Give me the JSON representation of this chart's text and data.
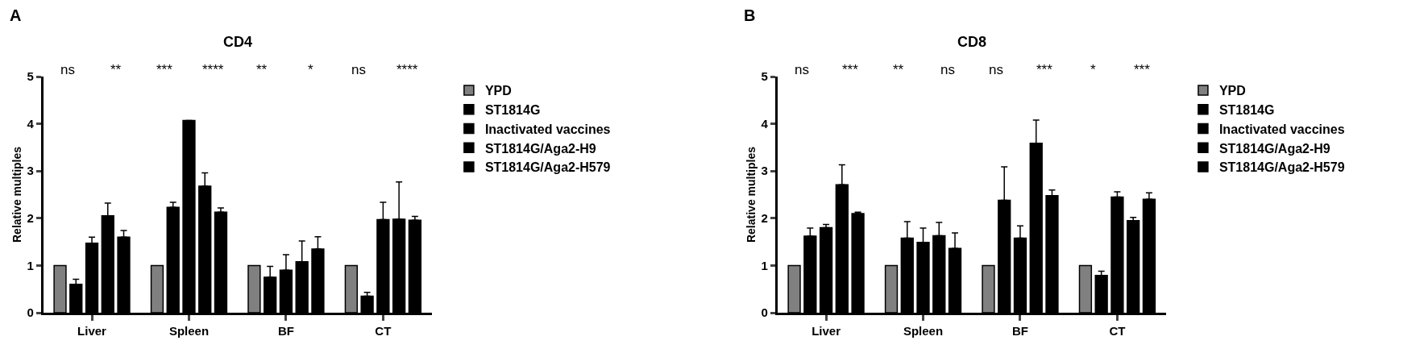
{
  "chart_data": [
    {
      "type": "bar",
      "title": "CD4",
      "ylabel": "Relative multiples",
      "categories": [
        "Liver",
        "Spleen",
        "BF",
        "CT"
      ],
      "ylim": [
        0,
        5
      ],
      "yticks": [
        0,
        1,
        2,
        3,
        4,
        5
      ],
      "grid": false,
      "legend": "right",
      "series": [
        {
          "name": "YPD",
          "color": "#808080",
          "values": [
            1,
            1,
            1,
            1
          ]
        },
        {
          "name": "ST1814G",
          "color": "#000000",
          "values": [
            0.6,
            2.23,
            0.75,
            0.35
          ],
          "errors": [
            [
              0.6,
              0.71
            ],
            [
              2.23,
              2.34
            ],
            [
              0.75,
              0.98
            ],
            [
              0.35,
              0.43
            ]
          ]
        },
        {
          "name": "Inactivated vaccines",
          "color": "#000000",
          "values": [
            1.47,
            4.07,
            0.9,
            1.97
          ],
          "errors": [
            [
              1.47,
              1.6
            ],
            null,
            [
              0.9,
              1.23
            ],
            [
              1.97,
              2.34
            ]
          ]
        },
        {
          "name": "ST1814G/Aga2-H9",
          "color": "#000000",
          "values": [
            2.05,
            2.68,
            1.08,
            1.98
          ],
          "errors": [
            [
              2.05,
              2.32
            ],
            [
              2.68,
              2.96
            ],
            [
              1.08,
              1.52
            ],
            [
              1.98,
              2.77
            ]
          ]
        },
        {
          "name": "ST1814G/Aga2-H579",
          "color": "#000000",
          "values": [
            1.6,
            2.13,
            1.35,
            1.96
          ],
          "errors": [
            [
              1.6,
              1.74
            ],
            [
              2.13,
              2.22
            ],
            [
              1.35,
              1.61
            ],
            [
              1.96,
              2.04
            ]
          ]
        }
      ],
      "annotations": [
        "A",
        "ns",
        "**",
        "***",
        "****",
        "**",
        "*",
        "ns",
        "****"
      ]
    },
    {
      "type": "bar",
      "title": "CD8",
      "ylabel": "Relative multiples",
      "categories": [
        "Liver",
        "Spleen",
        "BF",
        "CT"
      ],
      "ylim": [
        0,
        5
      ],
      "yticks": [
        0,
        1,
        2,
        3,
        4,
        5
      ],
      "grid": false,
      "legend": "right",
      "series": [
        {
          "name": "YPD",
          "color": "#808080",
          "values": [
            1,
            1,
            1,
            1
          ]
        },
        {
          "name": "ST1814G",
          "color": "#000000",
          "values": [
            1.62,
            1.58,
            2.38,
            0.79
          ],
          "errors": [
            [
              1.62,
              1.79
            ],
            [
              1.58,
              1.93
            ],
            [
              2.38,
              3.09
            ],
            [
              0.79,
              0.88
            ]
          ]
        },
        {
          "name": "Inactivated vaccines",
          "color": "#000000",
          "values": [
            1.8,
            1.49,
            1.58,
            2.45
          ],
          "errors": [
            [
              1.8,
              1.87
            ],
            [
              1.49,
              1.79
            ],
            [
              1.58,
              1.84
            ],
            [
              2.45,
              2.56
            ]
          ]
        },
        {
          "name": "ST1814G/Aga2-H9",
          "color": "#000000",
          "values": [
            2.71,
            1.63,
            3.59,
            1.95
          ],
          "errors": [
            [
              2.71,
              3.13
            ],
            [
              1.63,
              1.91
            ],
            [
              3.59,
              4.08
            ],
            [
              1.95,
              2.02
            ]
          ]
        },
        {
          "name": "ST1814G/Aga2-H579",
          "color": "#000000",
          "values": [
            2.1,
            1.36,
            2.48,
            2.4
          ],
          "errors": [
            [
              2.1,
              2.13
            ],
            [
              1.36,
              1.69
            ],
            [
              2.48,
              2.6
            ],
            [
              2.4,
              2.54
            ]
          ]
        }
      ],
      "annotations": [
        "B",
        "ns",
        "***",
        "**",
        "ns",
        "ns",
        "***",
        "*",
        "***"
      ]
    }
  ]
}
